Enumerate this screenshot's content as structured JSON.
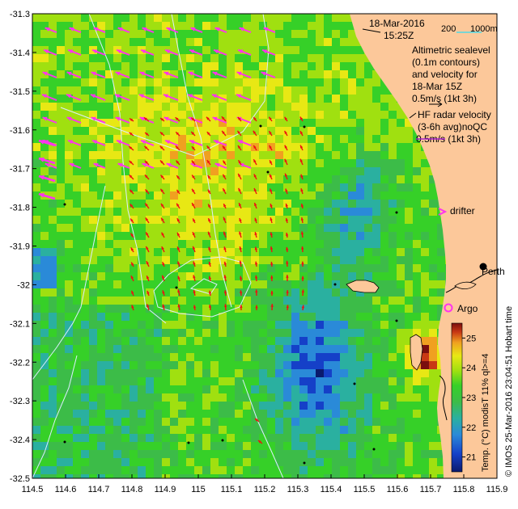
{
  "header": {
    "date": "18-Mar-2016",
    "time": "15:25Z",
    "scale_label": "200",
    "scale_unit": "1000m"
  },
  "legend": {
    "altimetric": [
      "Altimetric sealevel",
      "(0.1m contours)",
      "and velocity for",
      "18-Mar 15Z",
      "0.5m/s (1kt 3h)"
    ],
    "hf_radar": [
      "HF radar velocity",
      "(3-6h avg)noQC",
      "0.5m/s (1kt 3h)"
    ],
    "drifter": "drifter",
    "argo": "Argo",
    "perth": "Perth"
  },
  "colorbar": {
    "label": "Temp. (°C) modisT 11% ql>=4",
    "ticks": [
      "21",
      "22",
      "23",
      "24",
      "25"
    ],
    "min": 20.5,
    "max": 25.5,
    "colors": [
      "#0a1a6e",
      "#1540c8",
      "#2a8ad8",
      "#2ab0a0",
      "#3cbc48",
      "#36d028",
      "#a0e010",
      "#e8e814",
      "#f0a020",
      "#c83814",
      "#7a0e0e"
    ]
  },
  "credit": "© IMOS 25-Mar-2016 23:04:51 Hobart time",
  "axes": {
    "x_ticks": [
      "114.5",
      "114.6",
      "114.7",
      "114.8",
      "114.9",
      "115",
      "115.1",
      "115.2",
      "115.3",
      "115.4",
      "115.5",
      "115.6",
      "115.7",
      "115.8",
      "115.9"
    ],
    "y_ticks": [
      "-31.3",
      "-31.4",
      "-31.5",
      "-31.6",
      "-31.7",
      "-31.8",
      "-31.9",
      "-32",
      "-32.1",
      "-32.2",
      "-32.3",
      "-32.4",
      "-32.5"
    ],
    "x_range": [
      114.5,
      115.9
    ],
    "y_range": [
      -32.5,
      -31.3
    ]
  },
  "colors": {
    "land": "#fcc89a",
    "altimetry_arrow": "#ff33ee",
    "hf_arrow": "#ee1111",
    "contour": "#ddeeff",
    "argo": "#ff33ee"
  },
  "map": {
    "places": [
      {
        "name": "Perth",
        "lon": 115.86,
        "lat": -31.95
      },
      {
        "name": "Argo",
        "lon": 115.78,
        "lat": -32.08
      }
    ],
    "drifter_lat": -31.81
  }
}
